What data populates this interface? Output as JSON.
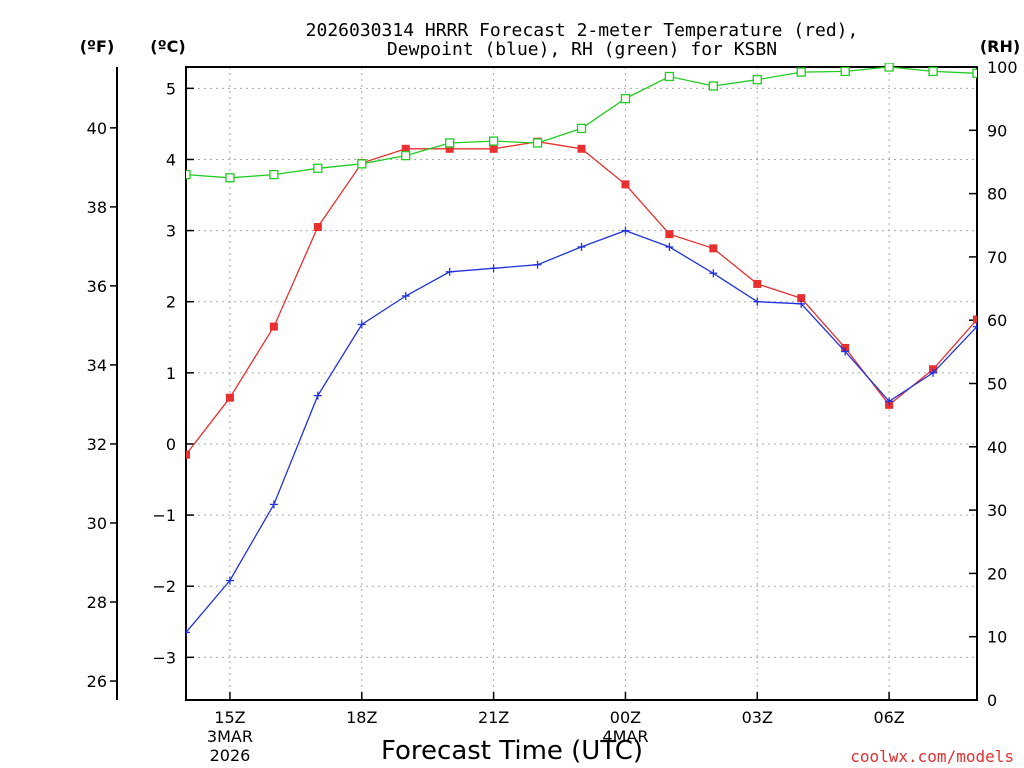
{
  "chart_data": {
    "type": "line",
    "title_line1": "2026030314 HRRR Forecast 2-meter Temperature (red),",
    "title_line2": "Dewpoint (blue), RH (green) for KSBN",
    "xlabel": "Forecast Time (UTC)",
    "credit": "coolwx.com/models",
    "left_outer_unit": "(ºF)",
    "left_inner_unit": "(ºC)",
    "right_unit": "(RH)",
    "x_hours": [
      14,
      15,
      16,
      17,
      18,
      19,
      20,
      21,
      22,
      23,
      24,
      25,
      26,
      27,
      28,
      29,
      30,
      31,
      32
    ],
    "xlim": [
      14,
      32
    ],
    "x_ticks": [
      {
        "x": 15,
        "label": "15Z",
        "sub1": "3MAR",
        "sub2": "2026"
      },
      {
        "x": 18,
        "label": "18Z",
        "sub1": "",
        "sub2": ""
      },
      {
        "x": 21,
        "label": "21Z",
        "sub1": "",
        "sub2": ""
      },
      {
        "x": 24,
        "label": "00Z",
        "sub1": "4MAR",
        "sub2": ""
      },
      {
        "x": 27,
        "label": "03Z",
        "sub1": "",
        "sub2": ""
      },
      {
        "x": 30,
        "label": "06Z",
        "sub1": "",
        "sub2": ""
      }
    ],
    "celsius_axis": {
      "ylim": [
        -3.6,
        5.3
      ],
      "ticks": [
        -3,
        -2,
        -1,
        0,
        1,
        2,
        3,
        4,
        5
      ]
    },
    "fahrenheit_ticks": [
      26,
      28,
      30,
      32,
      34,
      36,
      38,
      40
    ],
    "rh_axis": {
      "ylim": [
        0,
        100
      ],
      "ticks": [
        0,
        10,
        20,
        30,
        40,
        50,
        60,
        70,
        80,
        90,
        100
      ]
    },
    "series": [
      {
        "name": "Temperature",
        "unit": "C",
        "color": "#e83030",
        "marker": "filled-square",
        "values": [
          -0.15,
          0.65,
          1.65,
          3.05,
          3.95,
          4.15,
          4.15,
          4.15,
          4.25,
          4.15,
          3.65,
          2.95,
          2.75,
          2.25,
          2.05,
          1.35,
          0.55,
          1.05,
          1.75
        ]
      },
      {
        "name": "Dewpoint",
        "unit": "C",
        "color": "#2233dd",
        "marker": "plus",
        "values": [
          -2.65,
          -1.92,
          -0.85,
          0.68,
          1.68,
          2.08,
          2.42,
          2.47,
          2.52,
          2.77,
          3.0,
          2.77,
          2.4,
          2.0,
          1.97,
          1.3,
          0.6,
          1.0,
          1.65
        ]
      },
      {
        "name": "RH",
        "unit": "%",
        "color": "#22cc22",
        "marker": "open-square",
        "values": [
          83,
          82.5,
          83,
          84,
          84.7,
          86,
          88,
          88.3,
          88,
          90.3,
          95,
          98.5,
          97,
          98,
          99.2,
          99.3,
          100,
          99.3,
          99
        ]
      }
    ]
  }
}
